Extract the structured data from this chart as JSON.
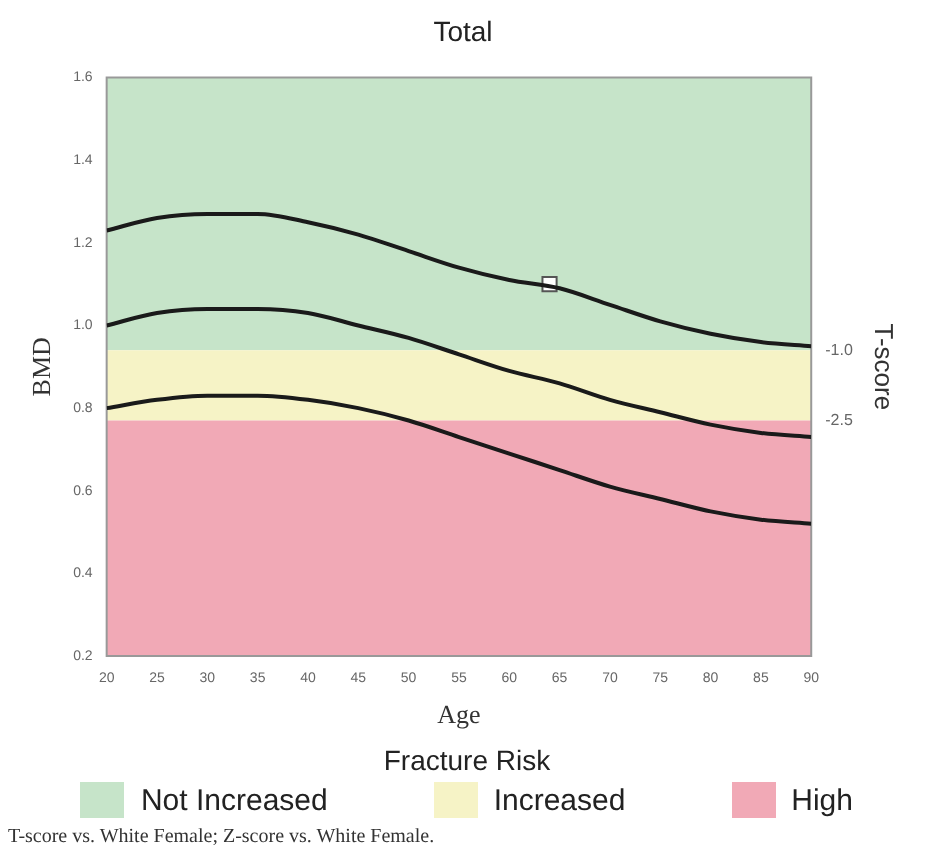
{
  "chart_data": {
    "type": "line",
    "title": "Total",
    "xlabel": "Age",
    "ylabel": "BMD",
    "y2label": "T-score",
    "legend_title": "Fracture Risk",
    "x": [
      20,
      25,
      30,
      35,
      40,
      45,
      50,
      55,
      60,
      65,
      70,
      75,
      80,
      85,
      90
    ],
    "series": [
      {
        "color": "#1a1a1a",
        "values": [
          1.23,
          1.26,
          1.27,
          1.27,
          1.25,
          1.22,
          1.18,
          1.14,
          1.11,
          1.09,
          1.05,
          1.01,
          0.98,
          0.96,
          0.95
        ]
      },
      {
        "color": "#1a1a1a",
        "values": [
          1.0,
          1.03,
          1.04,
          1.04,
          1.03,
          1.0,
          0.97,
          0.93,
          0.89,
          0.86,
          0.82,
          0.79,
          0.76,
          0.74,
          0.73
        ]
      },
      {
        "color": "#1a1a1a",
        "values": [
          0.8,
          0.82,
          0.83,
          0.83,
          0.82,
          0.8,
          0.77,
          0.73,
          0.69,
          0.65,
          0.61,
          0.58,
          0.55,
          0.53,
          0.52
        ]
      },
      {
        "type": "scatter",
        "marker": "square",
        "color": "#ffffff",
        "x": [
          64
        ],
        "values": [
          1.1
        ]
      }
    ],
    "xlim": [
      20,
      90
    ],
    "xticks": [
      20,
      25,
      30,
      35,
      40,
      45,
      50,
      55,
      60,
      65,
      70,
      75,
      80,
      85,
      90
    ],
    "ylim": [
      0.2,
      1.6
    ],
    "yticks": [
      {
        "value": 0.2,
        "label": "0.2"
      },
      {
        "value": 0.4,
        "label": "0.4"
      },
      {
        "value": 0.6,
        "label": "0.6"
      },
      {
        "value": 0.8,
        "label": "0.8"
      },
      {
        "value": 1.0,
        "label": "1.0"
      },
      {
        "value": 1.2,
        "label": "1.2"
      },
      {
        "value": 1.4,
        "label": "1.4"
      },
      {
        "value": 1.6,
        "label": "1.6"
      }
    ],
    "y2lim": [
      -7.5,
      4.8
    ],
    "y2ticks": [
      {
        "value": -1.0,
        "label": "-1.0"
      },
      {
        "value": -2.5,
        "label": "-2.5"
      }
    ],
    "bands": [
      {
        "axis": "y",
        "from": 0.94,
        "to": 1.6,
        "label": "Not Increased",
        "color": "#c6e4c9"
      },
      {
        "axis": "y",
        "from": 0.77,
        "to": 0.94,
        "label": "Increased",
        "color": "#f6f3c6"
      },
      {
        "axis": "y",
        "from": 0.2,
        "to": 0.77,
        "label": "High",
        "color": "#f1a9b6"
      }
    ],
    "legend": "bottom",
    "grid": false,
    "marker": "none",
    "line_style": "solid",
    "annotations": [
      "T-score vs. White Female; Z-score vs. White Female."
    ]
  }
}
